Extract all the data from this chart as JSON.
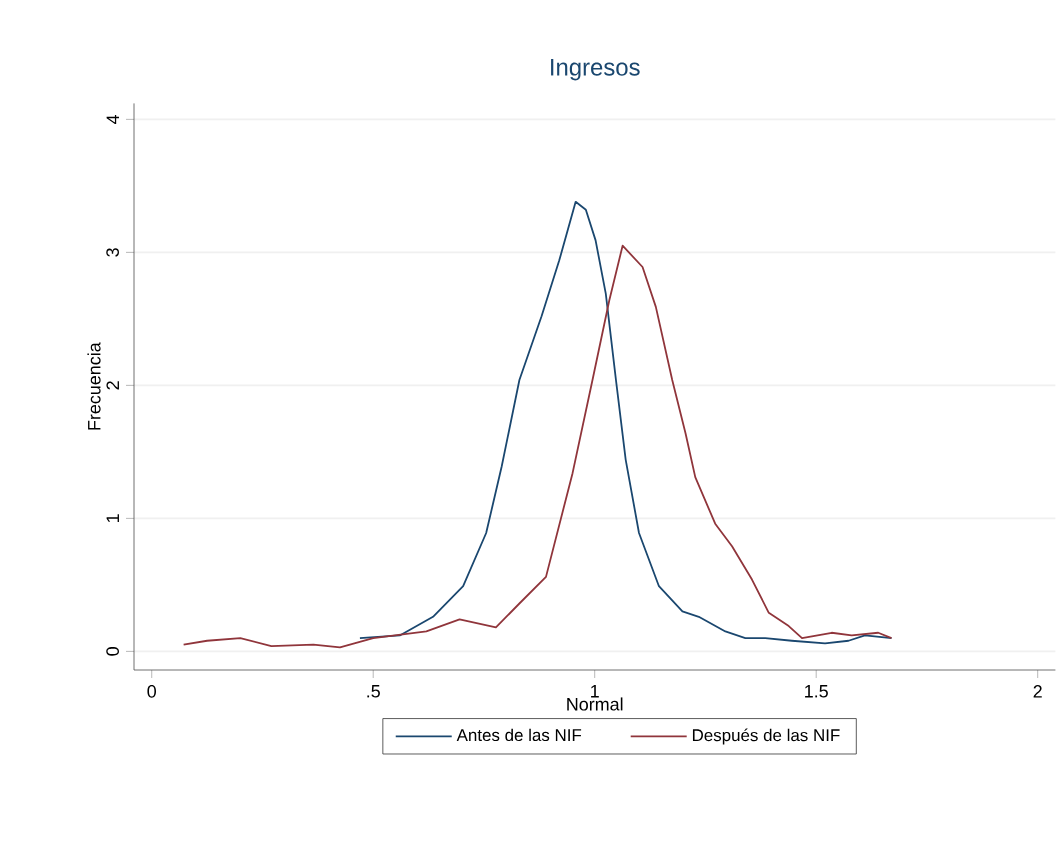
{
  "chart_data": {
    "type": "line",
    "title": "Ingresos",
    "xlabel": "Normal",
    "ylabel": "Frecuencia",
    "xlim": [
      -0.04,
      2.04
    ],
    "ylim": [
      -0.14,
      4.12
    ],
    "xticks": [
      0,
      {
        "value": 0.5,
        "label": ".5"
      },
      1,
      1.5,
      2
    ],
    "yticks": [
      0,
      1,
      2,
      3,
      4
    ],
    "grid": "y",
    "legend": "bottom",
    "line_style": "solid",
    "marker": "none",
    "series": [
      {
        "name": "Antes de las NIF",
        "color": "#1a476f",
        "x": [
          0.47,
          0.56,
          0.635,
          0.703,
          0.755,
          0.79,
          0.83,
          0.88,
          0.92,
          0.957,
          0.98,
          1.002,
          1.025,
          1.048,
          1.07,
          1.1,
          1.145,
          1.198,
          1.235,
          1.295,
          1.34,
          1.385,
          1.445,
          1.52,
          1.573,
          1.61,
          1.67
        ],
        "values": [
          0.1,
          0.12,
          0.26,
          0.49,
          0.89,
          1.39,
          2.04,
          2.52,
          2.94,
          3.38,
          3.32,
          3.09,
          2.69,
          2.04,
          1.44,
          0.89,
          0.49,
          0.3,
          0.26,
          0.15,
          0.1,
          0.1,
          0.08,
          0.06,
          0.08,
          0.12,
          0.1
        ]
      },
      {
        "name": "Después de las NIF",
        "color": "#90353b",
        "x": [
          0.072,
          0.125,
          0.2,
          0.27,
          0.365,
          0.425,
          0.5,
          0.62,
          0.695,
          0.777,
          0.83,
          0.89,
          0.95,
          0.995,
          1.033,
          1.063,
          1.108,
          1.138,
          1.175,
          1.205,
          1.227,
          1.272,
          1.31,
          1.355,
          1.393,
          1.438,
          1.468,
          1.535,
          1.58,
          1.64,
          1.67
        ],
        "values": [
          0.05,
          0.08,
          0.1,
          0.04,
          0.05,
          0.03,
          0.1,
          0.15,
          0.24,
          0.18,
          0.36,
          0.56,
          1.34,
          2.04,
          2.64,
          3.05,
          2.89,
          2.59,
          2.04,
          1.64,
          1.31,
          0.96,
          0.79,
          0.54,
          0.29,
          0.19,
          0.1,
          0.14,
          0.12,
          0.14,
          0.1
        ]
      }
    ]
  }
}
